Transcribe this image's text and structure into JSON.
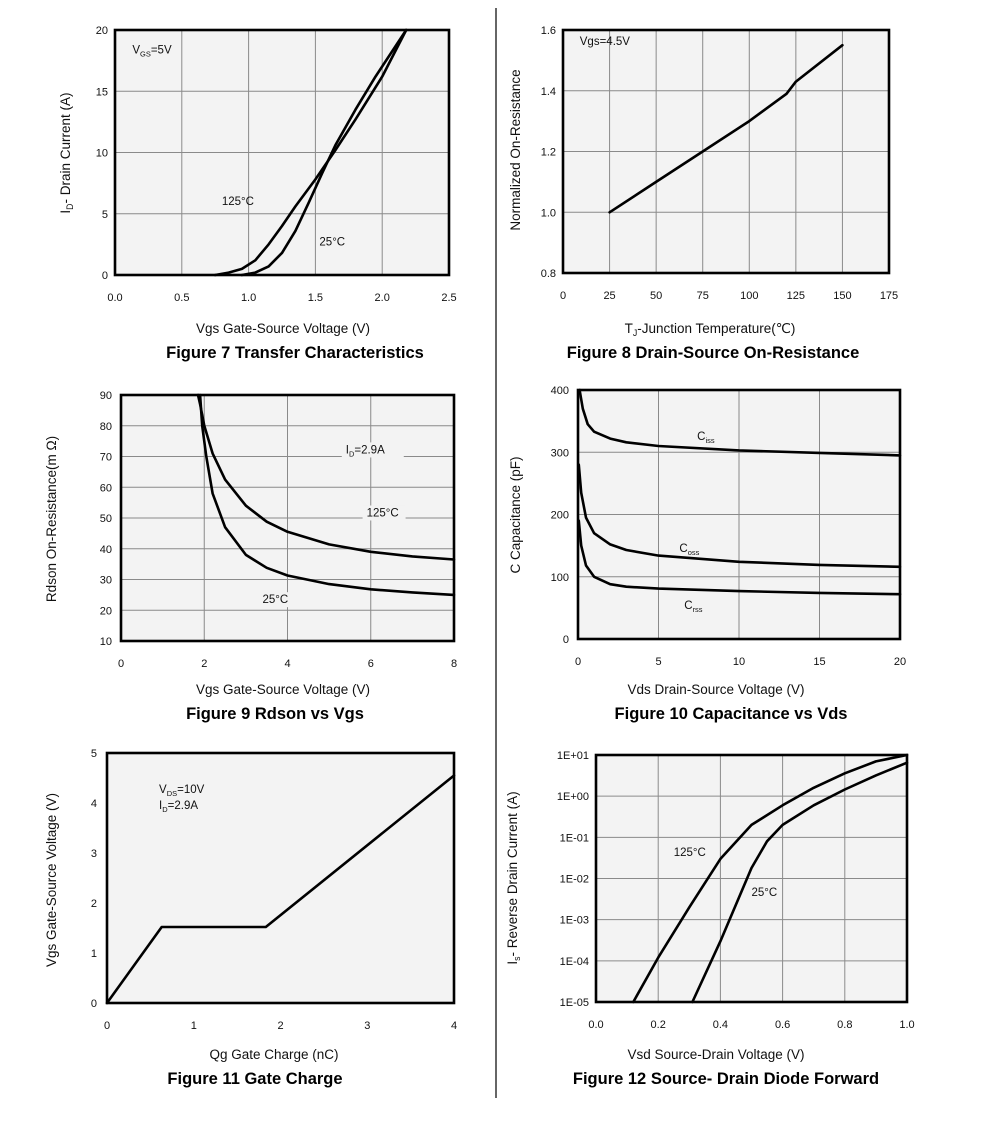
{
  "chart_data": [
    {
      "id": "fig7",
      "type": "line",
      "title": "Figure 7 Transfer Characteristics",
      "xlabel": "Vgs Gate-Source Voltage (V)",
      "ylabel": {
        "main": "I",
        "sub": "D",
        "rest": "- Drain Current (A)"
      },
      "xscale": "linear",
      "yscale": "linear",
      "xlim": [
        0,
        2.5
      ],
      "ylim": [
        0,
        20
      ],
      "xticks": [
        0,
        0.5,
        1,
        1.5,
        2,
        2.5
      ],
      "xticklabels": [
        "0.0",
        "0.5",
        "1.0",
        "1.5",
        "2.0",
        "2.5"
      ],
      "yticks": [
        0,
        5,
        10,
        15,
        20
      ],
      "yticklabels": [
        "0",
        "5",
        "10",
        "15",
        "20"
      ],
      "grid": true,
      "annotations": [
        {
          "text": {
            "main": "V",
            "sub": "GS",
            "rest": "=5V"
          },
          "x": 0.13,
          "y": 18.1
        }
      ],
      "series": [
        {
          "name": "125°C",
          "label_at": [
            0.8,
            5.7
          ],
          "points": [
            [
              0.75,
              0
            ],
            [
              0.85,
              0.2
            ],
            [
              0.95,
              0.5
            ],
            [
              1.05,
              1.2
            ],
            [
              1.15,
              2.5
            ],
            [
              1.25,
              4.0
            ],
            [
              1.35,
              5.6
            ],
            [
              1.5,
              7.8
            ],
            [
              1.65,
              10.2
            ],
            [
              1.8,
              12.7
            ],
            [
              2.0,
              16.2
            ],
            [
              2.18,
              20.0
            ]
          ]
        },
        {
          "name": "25°C",
          "label_at": [
            1.53,
            2.4
          ],
          "points": [
            [
              0.95,
              0
            ],
            [
              1.05,
              0.2
            ],
            [
              1.15,
              0.7
            ],
            [
              1.25,
              1.8
            ],
            [
              1.35,
              3.6
            ],
            [
              1.45,
              5.9
            ],
            [
              1.55,
              8.3
            ],
            [
              1.65,
              10.6
            ],
            [
              1.8,
              13.5
            ],
            [
              1.95,
              16.2
            ],
            [
              2.18,
              20.0
            ]
          ]
        }
      ]
    },
    {
      "id": "fig8",
      "type": "line",
      "title": "Figure 8 Drain-Source On-Resistance",
      "xlabel": {
        "main": "T",
        "sub": "J",
        "rest": "-Junction Temperature(℃)"
      },
      "ylabel": "Normalized On-Resistance",
      "xscale": "linear",
      "yscale": "linear",
      "xlim": [
        0,
        175
      ],
      "ylim": [
        0.8,
        1.6
      ],
      "xticks": [
        0,
        25,
        50,
        75,
        100,
        125,
        150,
        175
      ],
      "xticklabels": [
        "0",
        "25",
        "50",
        "75",
        "100",
        "125",
        "150",
        "175"
      ],
      "yticks": [
        0.8,
        1.0,
        1.2,
        1.4,
        1.6
      ],
      "yticklabels": [
        "0.8",
        "1.0",
        "1.2",
        "1.4",
        "1.6"
      ],
      "grid": true,
      "annotations": [
        {
          "text": "Vgs=4.5V",
          "x": 9,
          "y": 1.55
        }
      ],
      "series": [
        {
          "name": "",
          "points": [
            [
              25,
              1.0
            ],
            [
              50,
              1.1
            ],
            [
              75,
              1.2
            ],
            [
              100,
              1.3
            ],
            [
              120,
              1.39
            ],
            [
              125,
              1.43
            ],
            [
              150,
              1.55
            ]
          ]
        }
      ]
    },
    {
      "id": "fig9",
      "type": "line",
      "title": "Figure 9 Rdson vs Vgs",
      "xlabel": "Vgs Gate-Source Voltage (V)",
      "ylabel": "Rdson On-Resistance(m Ω)",
      "xscale": "linear",
      "yscale": "linear",
      "xlim": [
        0,
        8
      ],
      "ylim": [
        10,
        90
      ],
      "xticks": [
        0,
        2,
        4,
        6,
        8
      ],
      "xticklabels": [
        "0",
        "2",
        "4",
        "6",
        "8"
      ],
      "yticks": [
        10,
        20,
        30,
        40,
        50,
        60,
        70,
        80,
        90
      ],
      "yticklabels": [
        "10",
        "20",
        "30",
        "40",
        "50",
        "60",
        "70",
        "80",
        "90"
      ],
      "grid": true,
      "annotations": [
        {
          "text": {
            "main": "I",
            "sub": "D",
            "rest": "=2.9A"
          },
          "x": 5.4,
          "y": 71
        }
      ],
      "series": [
        {
          "name": "125°C",
          "label_at": [
            5.9,
            50.5
          ],
          "points": [
            [
              1.85,
              90
            ],
            [
              1.9,
              87
            ],
            [
              2.0,
              80
            ],
            [
              2.2,
              71
            ],
            [
              2.5,
              62.5
            ],
            [
              3.0,
              54
            ],
            [
              3.5,
              48.8
            ],
            [
              4.0,
              45.5
            ],
            [
              5.0,
              41.4
            ],
            [
              6.0,
              39
            ],
            [
              7.0,
              37.5
            ],
            [
              8.0,
              36.5
            ]
          ]
        },
        {
          "name": "25°C",
          "label_at": [
            3.4,
            22.3
          ],
          "points": [
            [
              1.9,
              90
            ],
            [
              1.95,
              80
            ],
            [
              2.05,
              70
            ],
            [
              2.2,
              58
            ],
            [
              2.5,
              47
            ],
            [
              3.0,
              38
            ],
            [
              3.5,
              33.8
            ],
            [
              4.0,
              31.3
            ],
            [
              5.0,
              28.5
            ],
            [
              6.0,
              26.8
            ],
            [
              7.0,
              25.8
            ],
            [
              8.0,
              25
            ]
          ]
        }
      ]
    },
    {
      "id": "fig10",
      "type": "line",
      "title": "Figure 10 Capacitance vs Vds",
      "xlabel": "Vds Drain-Source Voltage (V)",
      "ylabel": "C Capacitance (pF)",
      "xscale": "linear",
      "yscale": "linear",
      "xlim": [
        0,
        20
      ],
      "ylim": [
        0,
        400
      ],
      "xticks": [
        0,
        5,
        10,
        15,
        20
      ],
      "xticklabels": [
        "0",
        "5",
        "10",
        "15",
        "20"
      ],
      "yticks": [
        0,
        100,
        200,
        300,
        400
      ],
      "yticklabels": [
        "0",
        "100",
        "200",
        "300",
        "400"
      ],
      "grid": true,
      "annotations": [],
      "series": [
        {
          "name": "Ciss",
          "label": {
            "main": "C",
            "sub": "iss",
            "rest": ""
          },
          "label_at": [
            7.4,
            320
          ],
          "points": [
            [
              0.1,
              400
            ],
            [
              0.3,
              370
            ],
            [
              0.6,
              345
            ],
            [
              1,
              333
            ],
            [
              2,
              322
            ],
            [
              3,
              316
            ],
            [
              5,
              310
            ],
            [
              10,
              303
            ],
            [
              15,
              299
            ],
            [
              20,
              295
            ]
          ]
        },
        {
          "name": "Coss",
          "label": {
            "main": "C",
            "sub": "oss",
            "rest": ""
          },
          "label_at": [
            6.3,
            140
          ],
          "points": [
            [
              0.05,
              280
            ],
            [
              0.2,
              235
            ],
            [
              0.5,
              195
            ],
            [
              1,
              170
            ],
            [
              2,
              152
            ],
            [
              3,
              143
            ],
            [
              5,
              134
            ],
            [
              10,
              124
            ],
            [
              15,
              119
            ],
            [
              20,
              116
            ]
          ]
        },
        {
          "name": "Crss",
          "label": {
            "main": "C",
            "sub": "rss",
            "rest": ""
          },
          "label_at": [
            6.6,
            48
          ],
          "points": [
            [
              0.05,
              190
            ],
            [
              0.2,
              150
            ],
            [
              0.5,
              118
            ],
            [
              1,
              100
            ],
            [
              2,
              88
            ],
            [
              3,
              84
            ],
            [
              5,
              81
            ],
            [
              10,
              77
            ],
            [
              15,
              74
            ],
            [
              20,
              72
            ]
          ]
        }
      ]
    },
    {
      "id": "fig11",
      "type": "line",
      "title": "Figure 11 Gate Charge",
      "xlabel": "Qg Gate Charge (nC)",
      "ylabel": "Vgs Gate-Source Voltage (V)",
      "xscale": "linear",
      "yscale": "linear",
      "xlim": [
        0,
        4
      ],
      "ylim": [
        0,
        5
      ],
      "xticks": [
        0,
        1,
        2,
        3,
        4
      ],
      "xticklabels": [
        "0",
        "1",
        "2",
        "3",
        "4"
      ],
      "yticks": [
        0,
        1,
        2,
        3,
        4,
        5
      ],
      "yticklabels": [
        "0",
        "1",
        "2",
        "3",
        "4",
        "5"
      ],
      "grid": false,
      "annotations": [
        {
          "text": {
            "main": "V",
            "sub": "DS",
            "rest": "=10V"
          },
          "x": 0.6,
          "y": 4.2
        },
        {
          "text": {
            "main": "I",
            "sub": "D",
            "rest": "=2.9A"
          },
          "x": 0.6,
          "y": 3.88
        }
      ],
      "series": [
        {
          "name": "",
          "points": [
            [
              0,
              0
            ],
            [
              0.63,
              1.52
            ],
            [
              1.83,
              1.52
            ],
            [
              4.0,
              4.55
            ]
          ]
        }
      ]
    },
    {
      "id": "fig12",
      "type": "line",
      "title": "Figure 12 Source- Drain Diode Forward",
      "xlabel": "Vsd Source-Drain Voltage (V)",
      "ylabel": {
        "main": "I",
        "sub": "s",
        "rest": "- Reverse Drain Current (A)"
      },
      "xscale": "linear",
      "yscale": "log",
      "xlim": [
        0,
        1.0
      ],
      "ylim": [
        1e-05,
        10
      ],
      "xticks": [
        0,
        0.2,
        0.4,
        0.6,
        0.8,
        1.0
      ],
      "xticklabels": [
        "0.0",
        "0.2",
        "0.4",
        "0.6",
        "0.8",
        "1.0"
      ],
      "yticks": [
        1e-05,
        0.0001,
        0.001,
        0.01,
        0.1,
        1,
        10
      ],
      "yticklabels": [
        "1E-05",
        "1E-04",
        "1E-03",
        "1E-02",
        "1E-01",
        "1E+00",
        "1E+01"
      ],
      "grid": true,
      "annotations": [],
      "series": [
        {
          "name": "125°C",
          "label_at": [
            0.25,
            0.035
          ],
          "points": [
            [
              0.12,
              1e-05
            ],
            [
              0.2,
              0.00012
            ],
            [
              0.3,
              0.002
            ],
            [
              0.4,
              0.03
            ],
            [
              0.5,
              0.2
            ],
            [
              0.6,
              0.6
            ],
            [
              0.7,
              1.6
            ],
            [
              0.8,
              3.6
            ],
            [
              0.9,
              7.0
            ],
            [
              1.0,
              10
            ]
          ]
        },
        {
          "name": "25°C",
          "label_at": [
            0.5,
            0.0038
          ],
          "points": [
            [
              0.31,
              1e-05
            ],
            [
              0.4,
              0.0003
            ],
            [
              0.5,
              0.018
            ],
            [
              0.55,
              0.08
            ],
            [
              0.6,
              0.2
            ],
            [
              0.7,
              0.6
            ],
            [
              0.8,
              1.45
            ],
            [
              0.9,
              3.2
            ],
            [
              1.0,
              6.5
            ]
          ]
        }
      ]
    }
  ]
}
